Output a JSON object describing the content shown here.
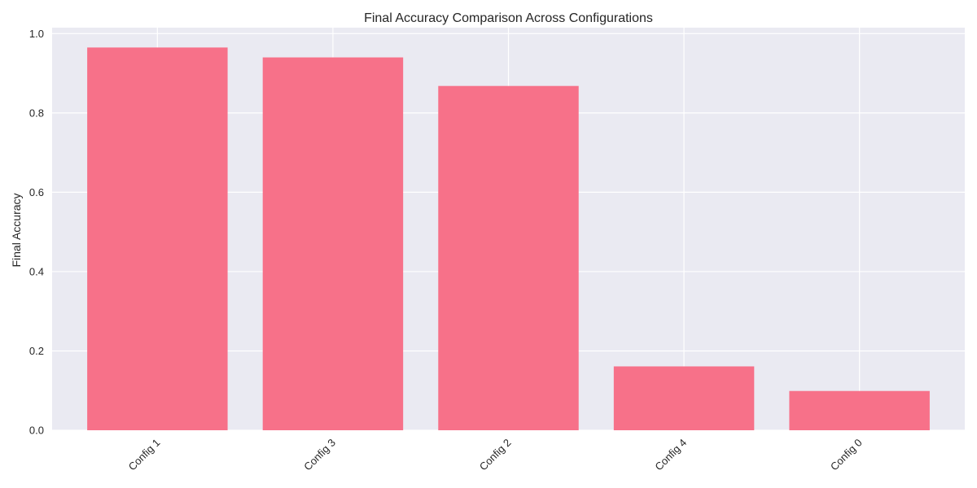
{
  "chart_data": {
    "type": "bar",
    "title": "Final Accuracy Comparison Across Configurations",
    "xlabel": "",
    "ylabel": "Final Accuracy",
    "categories": [
      "Config 1",
      "Config 3",
      "Config 2",
      "Config 4",
      "Config 0"
    ],
    "values": [
      0.965,
      0.94,
      0.868,
      0.161,
      0.099
    ],
    "ylim": [
      0,
      1.015
    ],
    "yticks": [
      0.0,
      0.2,
      0.4,
      0.6,
      0.8,
      1.0
    ],
    "ytick_labels": [
      "0.0",
      "0.2",
      "0.4",
      "0.6",
      "0.8",
      "1.0"
    ],
    "grid": true,
    "x_tick_rotation": 45,
    "colors": {
      "bar": "#f77189",
      "plot_background": "#eaeaf2",
      "grid": "#ffffff",
      "text": "#262626"
    }
  }
}
